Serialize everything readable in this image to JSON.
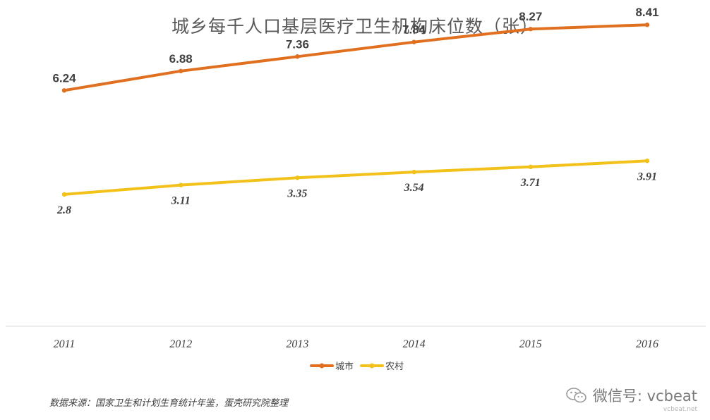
{
  "chart_data": {
    "type": "line",
    "title": "城乡每千人口基层医疗卫生机构床位数（张）",
    "categories": [
      "2011",
      "2012",
      "2013",
      "2014",
      "2015",
      "2016"
    ],
    "series": [
      {
        "name": "城市",
        "color": "#E07020",
        "values": [
          6.24,
          6.88,
          7.36,
          7.84,
          8.27,
          8.41
        ],
        "labels": [
          "6.24",
          "6.88",
          "7.36",
          "7.84",
          "8.27",
          "8.41"
        ]
      },
      {
        "name": "农村",
        "color": "#F2C21B",
        "values": [
          2.8,
          3.11,
          3.35,
          3.54,
          3.71,
          3.91
        ],
        "labels": [
          "2.8",
          "3.11",
          "3.35",
          "3.54",
          "3.71",
          "3.91"
        ]
      }
    ],
    "xlabel": "",
    "ylabel": "",
    "ylim": [
      0,
      9
    ],
    "grid": false,
    "legend": "bottom"
  },
  "source": "数据来源：国家卫生和计划生育统计年鉴，蛋壳研究院整理",
  "watermark": {
    "icon": "wechat-icon",
    "text": "微信号: vcbeat",
    "sub": "vcbeat.net"
  }
}
